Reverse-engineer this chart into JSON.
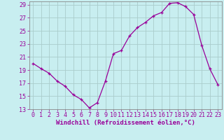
{
  "x": [
    0,
    1,
    2,
    3,
    4,
    5,
    6,
    7,
    8,
    9,
    10,
    11,
    12,
    13,
    14,
    15,
    16,
    17,
    18,
    19,
    20,
    21,
    22,
    23
  ],
  "y": [
    20.0,
    19.2,
    18.5,
    17.3,
    16.5,
    15.2,
    14.5,
    13.2,
    14.0,
    17.3,
    21.5,
    22.0,
    24.2,
    25.5,
    26.3,
    27.3,
    27.8,
    29.2,
    29.3,
    28.7,
    27.5,
    22.8,
    19.2,
    16.8
  ],
  "line_color": "#990099",
  "marker": "+",
  "marker_size": 3,
  "bg_color": "#c8eef0",
  "grid_color": "#aacccc",
  "xlabel": "Windchill (Refroidissement éolien,°C)",
  "xlim_min": -0.5,
  "xlim_max": 23.5,
  "ylim_min": 13,
  "ylim_max": 29.5,
  "yticks": [
    13,
    15,
    17,
    19,
    21,
    23,
    25,
    27,
    29
  ],
  "xticks": [
    0,
    1,
    2,
    3,
    4,
    5,
    6,
    7,
    8,
    9,
    10,
    11,
    12,
    13,
    14,
    15,
    16,
    17,
    18,
    19,
    20,
    21,
    22,
    23
  ],
  "tick_color": "#990099",
  "label_color": "#990099",
  "font_size": 6.0,
  "xlabel_fontsize": 6.5,
  "linewidth": 0.9,
  "markeredgewidth": 0.9
}
